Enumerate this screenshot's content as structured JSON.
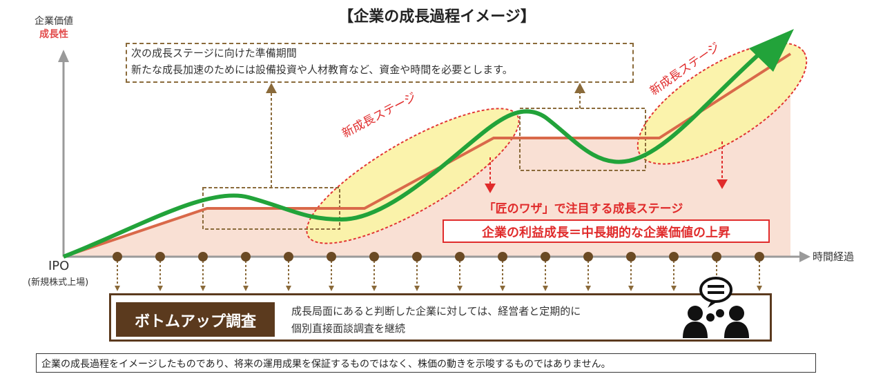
{
  "title": "【企業の成長過程イメージ】",
  "y_axis": {
    "label_line1": "企業価値",
    "label_line2": "成長性"
  },
  "x_axis": {
    "label": "時間経過"
  },
  "origin": {
    "label": "IPO",
    "sublabel": "(新規株式上場)"
  },
  "prep_note": {
    "title": "次の成長ステージに向けた準備期間",
    "body": "新たな成長加速のためには設備投資や人材教育など、資金や時間を必要とします。"
  },
  "stage_labels": [
    "新成長ステージ",
    "新成長ステージ"
  ],
  "focus_text": "「匠のワザ」で注目する成長ステージ",
  "profit_text": "企業の利益成長＝中長期的な企業価値の上昇",
  "bottom_up": {
    "label": "ボトムアップ調査",
    "desc_line1": "成長局面にあると判断した企業に対しては、経営者と定期的に",
    "desc_line2": "個別直接面談調査を継続"
  },
  "disclaimer": "企業の成長過程をイメージしたものであり、将来の運用成果を保証するものではなく、株価の動きを示唆するものではありません。",
  "colors": {
    "step_line": "#d9694a",
    "fill": "#f9e0d4",
    "growth_curve": "#22a33a",
    "ellipse": "#fbf3a8",
    "accent_red": "#e02b2b",
    "brown": "#5b3a1e",
    "dash_box": "#8a6a3a"
  },
  "icons": {
    "meeting": "meeting-people-icon"
  }
}
